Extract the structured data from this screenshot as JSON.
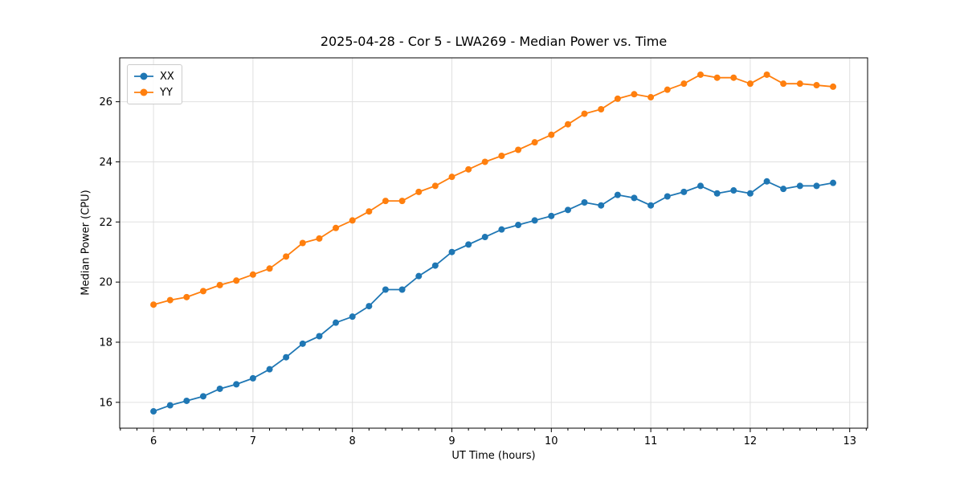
{
  "chart_data": {
    "type": "line",
    "title": "2025-04-28 - Cor 5 - LWA269 - Median Power vs. Time",
    "xlabel": "UT Time (hours)",
    "ylabel": "Median Power (CPU)",
    "marker": "o",
    "grid": true,
    "legend_position": "upper left",
    "background_color": "#ffffff",
    "grid_color": "#e0e0e0",
    "spine_color": "#000000",
    "xlim": [
      5.66,
      13.18
    ],
    "ylim": [
      15.14,
      27.46
    ],
    "xticks": [
      6,
      7,
      8,
      9,
      10,
      11,
      12,
      13
    ],
    "yticks": [
      16,
      18,
      20,
      22,
      24,
      26
    ],
    "x_minor_tick_step": 0.16667,
    "x": [
      6.0,
      6.167,
      6.333,
      6.5,
      6.667,
      6.833,
      7.0,
      7.167,
      7.333,
      7.5,
      7.667,
      7.833,
      8.0,
      8.167,
      8.333,
      8.5,
      8.667,
      8.833,
      9.0,
      9.167,
      9.333,
      9.5,
      9.667,
      9.833,
      10.0,
      10.167,
      10.333,
      10.5,
      10.667,
      10.833,
      11.0,
      11.167,
      11.333,
      11.5,
      11.667,
      11.833,
      12.0,
      12.167,
      12.333,
      12.5,
      12.667,
      12.833
    ],
    "series": [
      {
        "name": "XX",
        "color": "#1f77b4",
        "values": [
          15.7,
          15.9,
          16.05,
          16.2,
          16.45,
          16.6,
          16.8,
          17.1,
          17.5,
          17.95,
          18.2,
          18.65,
          18.85,
          19.2,
          19.75,
          19.75,
          20.2,
          20.55,
          21.0,
          21.25,
          21.5,
          21.75,
          21.9,
          22.05,
          22.2,
          22.4,
          22.65,
          22.55,
          22.9,
          22.8,
          22.55,
          22.85,
          23.0,
          23.2,
          22.95,
          23.05,
          22.95,
          23.35,
          23.1,
          23.2,
          23.2,
          23.3
        ]
      },
      {
        "name": "YY",
        "color": "#ff7f0e",
        "values": [
          19.25,
          19.4,
          19.5,
          19.7,
          19.9,
          20.05,
          20.25,
          20.45,
          20.85,
          21.3,
          21.45,
          21.8,
          22.05,
          22.35,
          22.7,
          22.7,
          23.0,
          23.2,
          23.5,
          23.75,
          24.0,
          24.2,
          24.4,
          24.65,
          24.9,
          25.25,
          25.6,
          25.75,
          26.1,
          26.25,
          26.15,
          26.4,
          26.6,
          26.9,
          26.8,
          26.8,
          26.6,
          26.9,
          26.6,
          26.6,
          26.55,
          26.5
        ]
      }
    ]
  }
}
